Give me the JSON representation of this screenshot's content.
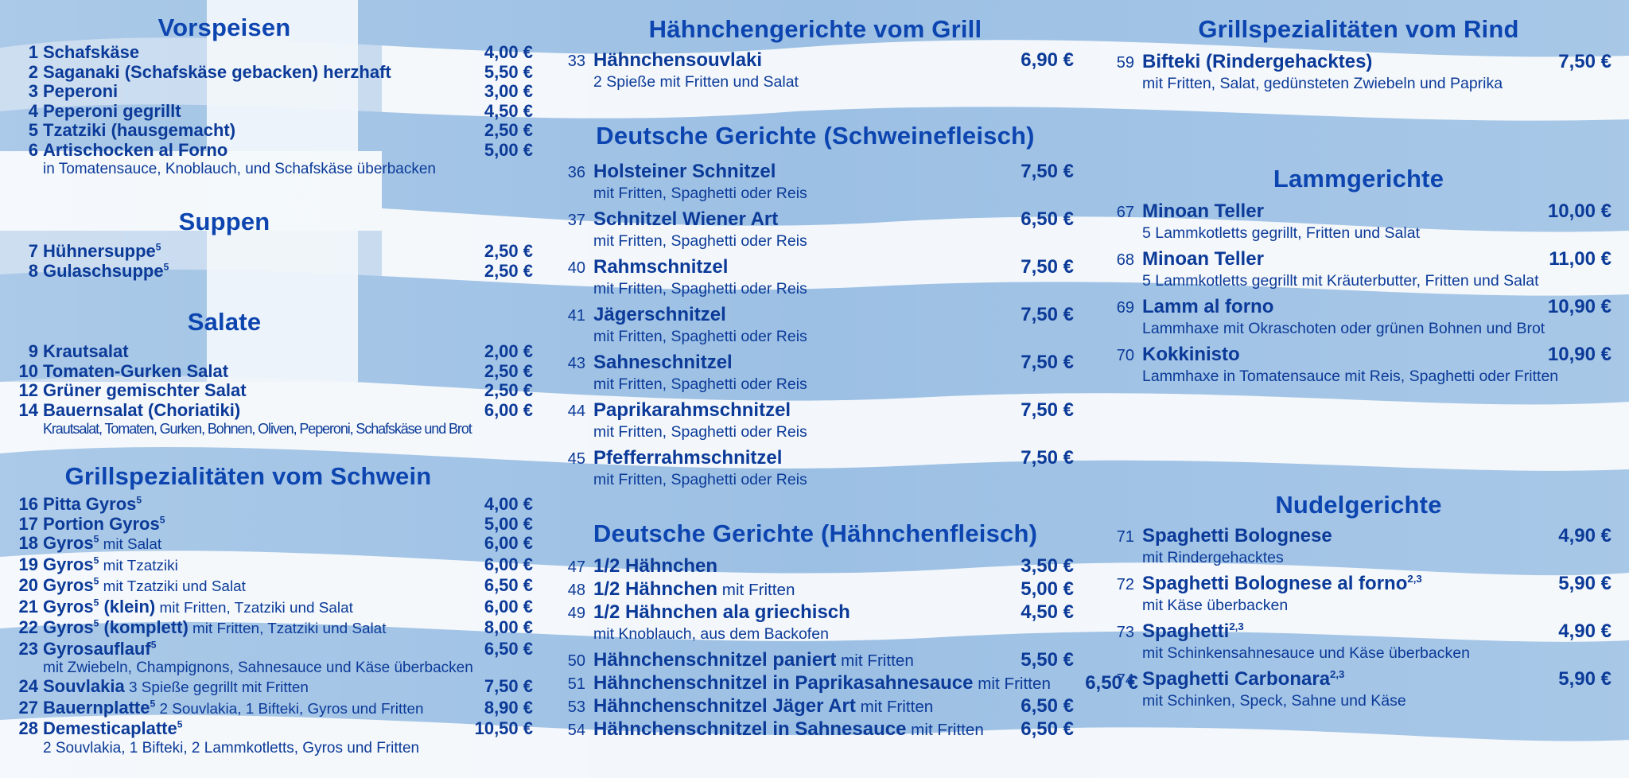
{
  "colors": {
    "text": "#0b3a98",
    "heading": "#0d45b0",
    "flag_blue": "#8fb6df",
    "flag_white": "#f4f7fb"
  },
  "left": {
    "vorspeisen": {
      "title": "Vorspeisen",
      "items": [
        {
          "num": "1",
          "name": "Schafskäse",
          "price": "4,00 €"
        },
        {
          "num": "2",
          "name": "Saganaki (Schafskäse gebacken) herzhaft",
          "price": "5,50 €"
        },
        {
          "num": "3",
          "name": "Peperoni",
          "price": "3,00 €"
        },
        {
          "num": "4",
          "name": "Peperoni gegrillt",
          "price": "4,50 €"
        },
        {
          "num": "5",
          "name": "Tzatziki (hausgemacht)",
          "price": "2,50 €"
        },
        {
          "num": "6",
          "name": "Artischocken al Forno",
          "price": "5,00 €",
          "desc": "in Tomatensauce, Knoblauch, und Schafskäse überbacken"
        }
      ]
    },
    "suppen": {
      "title": "Suppen",
      "items": [
        {
          "num": "7",
          "name": "Hühnersuppe",
          "sup": "5",
          "price": "2,50 €"
        },
        {
          "num": "8",
          "name": "Gulaschsuppe",
          "sup": "5",
          "price": "2,50 €"
        }
      ]
    },
    "salate": {
      "title": "Salate",
      "items": [
        {
          "num": "9",
          "name": "Krautsalat",
          "price": "2,00 €"
        },
        {
          "num": "10",
          "name": "Tomaten-Gurken Salat",
          "price": "2,50 €"
        },
        {
          "num": "12",
          "name": "Grüner gemischter Salat",
          "price": "2,50 €"
        },
        {
          "num": "14",
          "name": "Bauernsalat (Choriatiki)",
          "price": "6,00 €",
          "desc": "Krautsalat, Tomaten, Gurken, Bohnen, Oliven, Peperoni, Schafskäse und Brot"
        }
      ]
    },
    "schwein": {
      "title": "Grillspezialitäten vom Schwein",
      "items": [
        {
          "num": "16",
          "name": "Pitta Gyros",
          "sup": "5",
          "price": "4,00 €"
        },
        {
          "num": "17",
          "name": "Portion Gyros",
          "sup": "5",
          "price": "5,00 €"
        },
        {
          "num": "18",
          "name": "Gyros",
          "sup": "5",
          "extra": " mit Salat",
          "price": "6,00 €"
        },
        {
          "num": "19",
          "name": "Gyros",
          "sup": "5",
          "extra": " mit Tzatziki",
          "price": "6,00 €"
        },
        {
          "num": "20",
          "name": "Gyros",
          "sup": "5",
          "extra": " mit Tzatziki und Salat",
          "price": "6,50 €"
        },
        {
          "num": "21",
          "name": "Gyros",
          "sup": "5",
          "name2": " (klein)",
          "extra": " mit Fritten, Tzatziki und Salat",
          "price": "6,00 €"
        },
        {
          "num": "22",
          "name": "Gyros",
          "sup": "5",
          "name2": " (komplett)",
          "extra": " mit Fritten, Tzatziki und Salat",
          "price": "8,00 €"
        },
        {
          "num": "23",
          "name": "Gyrosauflauf",
          "sup": "5",
          "price": "6,50 €",
          "desc": "mit Zwiebeln, Champignons, Sahnesauce und Käse überbacken"
        },
        {
          "num": "24",
          "name": "Souvlakia",
          "extra": " 3 Spieße gegrillt mit Fritten",
          "price": "7,50 €"
        },
        {
          "num": "27",
          "name": "Bauernplatte",
          "sup": "5",
          "extra": " 2 Souvlakia, 1 Bifteki, Gyros und Fritten",
          "price": "8,90 €"
        },
        {
          "num": "28",
          "name": "Demesticaplatte",
          "sup": "5",
          "price": "10,50 €",
          "desc": "2 Souvlakia, 1 Bifteki, 2 Lammkotletts, Gyros und Fritten"
        }
      ]
    }
  },
  "middle": {
    "grill": {
      "title": "Hähnchengerichte vom Grill",
      "items": [
        {
          "num": "33",
          "name": "Hähnchensouvlaki",
          "price": "6,90 €",
          "desc": "2 Spieße mit Fritten und Salat"
        }
      ]
    },
    "schweinefleisch": {
      "title": "Deutsche Gerichte (Schweinefleisch)",
      "items": [
        {
          "num": "36",
          "name": "Holsteiner Schnitzel",
          "price": "7,50 €",
          "desc": "mit Fritten, Spaghetti oder Reis"
        },
        {
          "num": "37",
          "name": "Schnitzel Wiener Art",
          "price": "6,50 €",
          "desc": "mit Fritten, Spaghetti oder Reis"
        },
        {
          "num": "40",
          "name": "Rahmschnitzel",
          "price": "7,50 €",
          "desc": "mit Fritten, Spaghetti oder Reis"
        },
        {
          "num": "41",
          "name": "Jägerschnitzel",
          "price": "7,50 €",
          "desc": "mit Fritten, Spaghetti oder Reis"
        },
        {
          "num": "43",
          "name": "Sahneschnitzel",
          "price": "7,50 €",
          "desc": "mit Fritten, Spaghetti oder Reis"
        },
        {
          "num": "44",
          "name": "Paprikarahmschnitzel",
          "price": "7,50 €",
          "desc": "mit Fritten, Spaghetti oder Reis"
        },
        {
          "num": "45",
          "name": "Pfefferrahmschnitzel",
          "price": "7,50 €",
          "desc": "mit Fritten, Spaghetti oder Reis"
        }
      ]
    },
    "haehnchenfleisch": {
      "title": "Deutsche Gerichte (Hähnchenfleisch)",
      "items": [
        {
          "num": "47",
          "name": "1/2 Hähnchen",
          "price": "3,50 €"
        },
        {
          "num": "48",
          "name": "1/2 Hähnchen",
          "extra": " mit Fritten",
          "price": "5,00 €"
        },
        {
          "num": "49",
          "name": "1/2 Hähnchen ala griechisch",
          "price": "4,50 €",
          "desc": "mit Knoblauch, aus dem Backofen"
        },
        {
          "num": "50",
          "name": "Hähnchenschnitzel paniert",
          "extra": " mit Fritten",
          "price": "5,50 €"
        },
        {
          "num": "51",
          "name": "Hähnchenschnitzel in Paprikasahnesauce",
          "extra": " mit Fritten",
          "price": "6,50 €"
        },
        {
          "num": "53",
          "name": "Hähnchenschnitzel Jäger Art",
          "extra": " mit Fritten",
          "price": "6,50 €"
        },
        {
          "num": "54",
          "name": "Hähnchenschnitzel in Sahnesauce",
          "extra": " mit Fritten",
          "price": "6,50 €"
        }
      ]
    }
  },
  "right": {
    "rind": {
      "title": "Grillspezialitäten vom Rind",
      "items": [
        {
          "num": "59",
          "name": "Bifteki (Rindergehacktes)",
          "price": "7,50 €",
          "desc": "mit Fritten, Salat, gedünsteten Zwiebeln und Paprika"
        }
      ]
    },
    "lamm": {
      "title": "Lammgerichte",
      "items": [
        {
          "num": "67",
          "name": "Minoan Teller",
          "price": "10,00 €",
          "desc": "5 Lammkotletts gegrillt, Fritten und Salat"
        },
        {
          "num": "68",
          "name": "Minoan Teller",
          "price": "11,00 €",
          "desc": "5 Lammkotletts gegrillt mit Kräuterbutter, Fritten und Salat"
        },
        {
          "num": "69",
          "name": "Lamm al forno",
          "price": "10,90 €",
          "desc": "Lammhaxe mit Okraschoten oder grünen Bohnen und Brot"
        },
        {
          "num": "70",
          "name": "Kokkinisto",
          "price": "10,90 €",
          "desc": "Lammhaxe in Tomatensauce mit Reis, Spaghetti oder Fritten"
        }
      ]
    },
    "nudel": {
      "title": "Nudelgerichte",
      "items": [
        {
          "num": "71",
          "name": "Spaghetti Bolognese",
          "price": "4,90 €",
          "desc": "mit Rindergehacktes"
        },
        {
          "num": "72",
          "name": "Spaghetti Bolognese al forno",
          "sup": "2,3",
          "price": "5,90 €",
          "desc": "mit Käse überbacken"
        },
        {
          "num": "73",
          "name": "Spaghetti",
          "sup": "2,3",
          "price": "4,90 €",
          "desc": "mit Schinkensahnesauce und Käse überbacken"
        },
        {
          "num": "74",
          "name": "Spaghetti Carbonara",
          "sup": "2,3",
          "price": "5,90 €",
          "desc": "mit Schinken, Speck, Sahne und Käse"
        }
      ]
    }
  }
}
